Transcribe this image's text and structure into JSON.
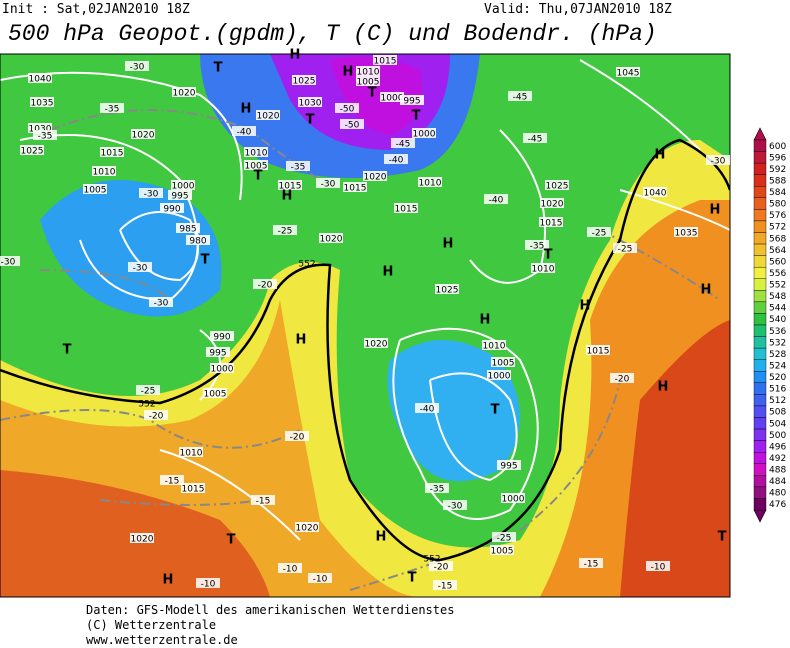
{
  "header": {
    "init": "Init : Sat,02JAN2010 18Z",
    "valid": "Valid: Thu,07JAN2010 18Z",
    "title": "500 hPa Geopot.(gpdm), T (C) und Bodendr. (hPa)"
  },
  "legend": {
    "levels": [
      "600",
      "596",
      "592",
      "588",
      "584",
      "580",
      "576",
      "572",
      "568",
      "564",
      "560",
      "556",
      "552",
      "548",
      "544",
      "540",
      "536",
      "532",
      "528",
      "524",
      "520",
      "516",
      "512",
      "508",
      "504",
      "500",
      "496",
      "492",
      "488",
      "484",
      "480",
      "476"
    ],
    "colors": [
      "#b0104a",
      "#c01838",
      "#d02020",
      "#d83018",
      "#e04818",
      "#e86020",
      "#f07820",
      "#f09020",
      "#f0a828",
      "#f0c030",
      "#f0d838",
      "#f0f040",
      "#d8f040",
      "#a0e040",
      "#60d040",
      "#30c040",
      "#20c070",
      "#20c0a0",
      "#20c0d0",
      "#20b0f0",
      "#2090f0",
      "#3070f0",
      "#4060f0",
      "#5050f0",
      "#6040f0",
      "#8030f0",
      "#a020f0",
      "#c010e0",
      "#d010c0",
      "#b010a0",
      "#901080",
      "#700060"
    ]
  },
  "map": {
    "pressure_labels": [
      "1040",
      "1035",
      "1030",
      "1025",
      "1020",
      "1020",
      "1015",
      "1010",
      "1005",
      "1000",
      "995",
      "990",
      "985",
      "980",
      "1025",
      "1030",
      "1020",
      "1010",
      "1005",
      "1015",
      "1015",
      "1020",
      "1020",
      "1010",
      "1015",
      "1015",
      "1010",
      "1005",
      "1000",
      "995",
      "1000",
      "1025",
      "1020",
      "1015",
      "1010",
      "1025",
      "1020",
      "1010",
      "1005",
      "1000",
      "995",
      "1000",
      "1005",
      "1015",
      "1040",
      "1035",
      "1045",
      "990",
      "995",
      "1000",
      "1005",
      "1010",
      "1015",
      "1020",
      "1020"
    ],
    "temperature_labels": [
      "-30",
      "-35",
      "-40",
      "-35",
      "-30",
      "-30",
      "-25",
      "-30",
      "-30",
      "-35",
      "-30",
      "-25",
      "-20",
      "-20",
      "-20",
      "-15",
      "-15",
      "-10",
      "-10",
      "-10",
      "-20",
      "-15",
      "-25",
      "-30",
      "-35",
      "-40",
      "-40",
      "-45",
      "-45",
      "-35",
      "-25",
      "-25",
      "-20",
      "-30",
      "-10",
      "-15",
      "-45",
      "-40",
      "-50",
      "-50"
    ],
    "contour_labels": [
      "552",
      "552",
      "552"
    ],
    "centers": [
      "H",
      "T",
      "H",
      "T",
      "H",
      "T",
      "T",
      "H",
      "T",
      "H",
      "T",
      "H",
      "H",
      "T",
      "H",
      "H",
      "T",
      "H",
      "H",
      "H",
      "H",
      "T",
      "T",
      "H",
      "H",
      "T",
      "T"
    ]
  },
  "footer": {
    "source": "Daten: GFS-Modell des amerikanischen Wetterdienstes",
    "copyright": "(C) Wetterzentrale",
    "url": "www.wetterzentrale.de"
  }
}
